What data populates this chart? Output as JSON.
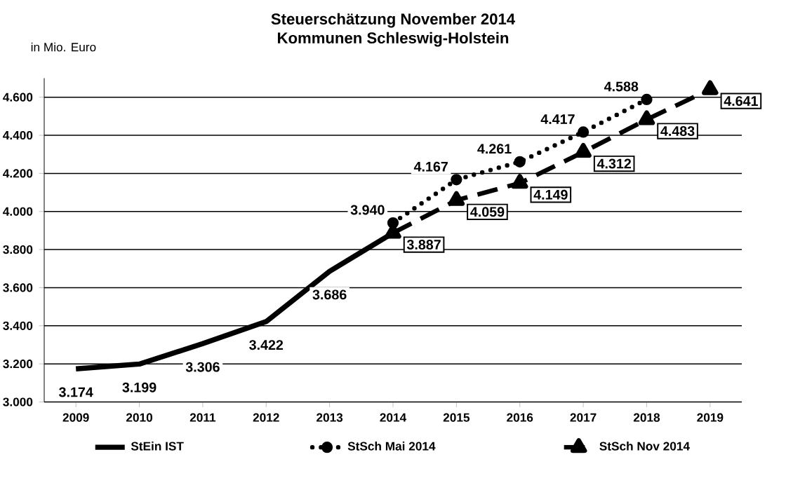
{
  "chart_data": {
    "type": "line",
    "title": "Steuerschätzung November 2014",
    "subtitle": "Kommunen Schleswig-Holstein",
    "ylabel": "in Mio. Euro",
    "categories": [
      "2009",
      "2010",
      "2011",
      "2012",
      "2013",
      "2014",
      "2015",
      "2016",
      "2017",
      "2018",
      "2019"
    ],
    "ylim": [
      3000,
      4700
    ],
    "yticks": [
      {
        "value": 3000,
        "label": "3.000"
      },
      {
        "value": 3200,
        "label": "3.200"
      },
      {
        "value": 3400,
        "label": "3.400"
      },
      {
        "value": 3600,
        "label": "3.600"
      },
      {
        "value": 3800,
        "label": "3.800"
      },
      {
        "value": 4000,
        "label": "4.000"
      },
      {
        "value": 4200,
        "label": "4.200"
      },
      {
        "value": 4400,
        "label": "4.400"
      },
      {
        "value": 4600,
        "label": "4.600"
      }
    ],
    "grid": "y",
    "legend": "bottom",
    "series": [
      {
        "name": "StEin IST",
        "color": "#000000",
        "marker": "none",
        "line_style": "solid",
        "values": [
          3174,
          3199,
          3306,
          3422,
          3686,
          3887,
          null,
          null,
          null,
          null,
          null
        ],
        "value_labels": [
          "3.174",
          "3.199",
          "3.306",
          "3.422",
          "3.686",
          null,
          null,
          null,
          null,
          null,
          null
        ]
      },
      {
        "name": "StSch Mai 2014",
        "color": "#000000",
        "marker": "circle",
        "line_style": "dotted",
        "values": [
          null,
          null,
          null,
          null,
          null,
          3940,
          4167,
          4261,
          4417,
          4588,
          null
        ],
        "value_labels": [
          null,
          null,
          null,
          null,
          null,
          "3.940",
          "4.167",
          "4.261",
          "4.417",
          "4.588",
          null
        ]
      },
      {
        "name": "StSch Nov 2014",
        "color": "#000000",
        "marker": "triangle",
        "line_style": "dashed",
        "values": [
          null,
          null,
          null,
          null,
          null,
          3887,
          4059,
          4149,
          4312,
          4483,
          4641
        ],
        "value_labels": [
          null,
          null,
          null,
          null,
          null,
          "3.887",
          "4.059",
          "4.149",
          "4.312",
          "4.483",
          "4.641"
        ]
      }
    ]
  }
}
